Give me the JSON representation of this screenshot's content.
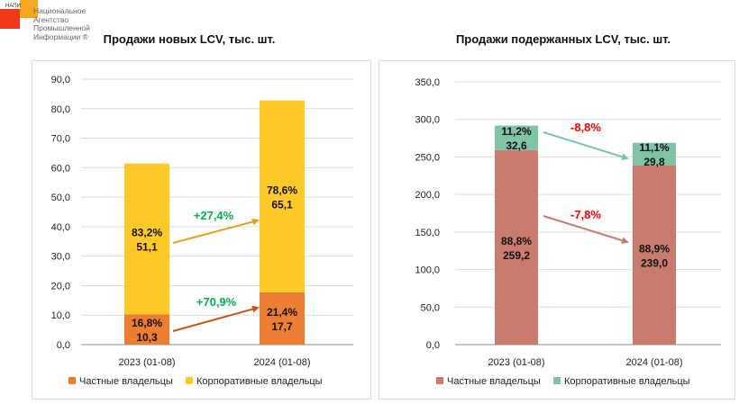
{
  "logo": {
    "small": "НАПИ",
    "text": "Национальное Агентство Промышленной Информации ®"
  },
  "chart_data": [
    {
      "type": "bar",
      "stacked": true,
      "title": "Продажи новых LCV, тыс. шт.",
      "categories": [
        "2023 (01-08)",
        "2024 (01-08)"
      ],
      "ylim": [
        0,
        90
      ],
      "yticks": [
        "0,0",
        "10,0",
        "20,0",
        "30,0",
        "40,0",
        "50,0",
        "60,0",
        "70,0",
        "80,0",
        "90,0"
      ],
      "ytick_values": [
        0,
        10,
        20,
        30,
        40,
        50,
        60,
        70,
        80,
        90
      ],
      "series": [
        {
          "name": "Частные владельцы",
          "color": "#ed7d31",
          "values": [
            10.3,
            17.7
          ],
          "labels": [
            "10,3",
            "17,7"
          ],
          "shares": [
            "16,8%",
            "21,4%"
          ],
          "change": "+70,9%",
          "change_color": "#00b050",
          "arrow_color": "#c55a11"
        },
        {
          "name": "Корпоративные владельцы",
          "color": "#ffca28",
          "values": [
            51.1,
            65.1
          ],
          "labels": [
            "51,1",
            "65,1"
          ],
          "shares": [
            "83,2%",
            "78,6%"
          ],
          "change": "+27,4%",
          "change_color": "#00b050",
          "arrow_color": "#daa520"
        }
      ],
      "legend": "bottom"
    },
    {
      "type": "bar",
      "stacked": true,
      "title": "Продажи подержанных LCV, тыс. шт.",
      "categories": [
        "2023 (01-08)",
        "2024 (01-08)"
      ],
      "ylim": [
        0,
        350
      ],
      "yticks": [
        "0,0",
        "50,0",
        "100,0",
        "150,0",
        "200,0",
        "250,0",
        "300,0",
        "350,0"
      ],
      "ytick_values": [
        0,
        50,
        100,
        150,
        200,
        250,
        300,
        350
      ],
      "series": [
        {
          "name": "Частные владельцы",
          "color": "#c97c6e",
          "values": [
            259.2,
            239.0
          ],
          "labels": [
            "259,2",
            "239,0"
          ],
          "shares": [
            "88,8%",
            "88,9%"
          ],
          "change": "-7,8%",
          "change_color": "#ff0000",
          "arrow_color": "#c97c6e"
        },
        {
          "name": "Корпоративные владельцы",
          "color": "#7fc4a5",
          "values": [
            32.6,
            29.8
          ],
          "labels": [
            "32,6",
            "29,8"
          ],
          "shares": [
            "11,2%",
            "11,1%"
          ],
          "change": "-8,8%",
          "change_color": "#ff0000",
          "arrow_color": "#7fc4a5"
        }
      ],
      "legend": "bottom"
    }
  ]
}
